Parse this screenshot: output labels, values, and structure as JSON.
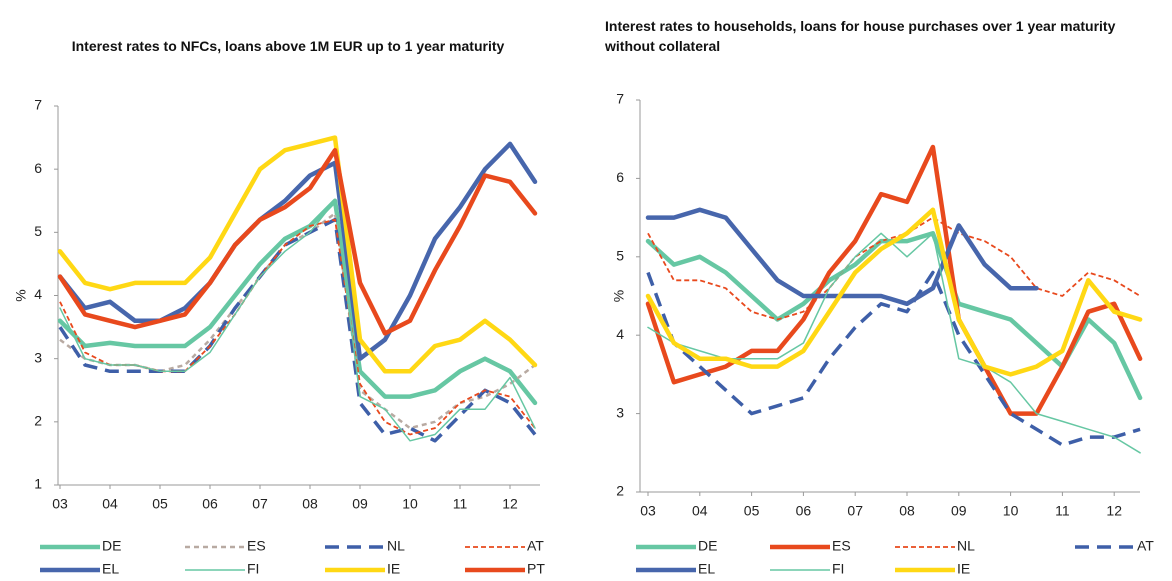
{
  "chart_data": [
    {
      "type": "line",
      "title": "Interest rates to NFCs, loans  above 1M EUR up to 1 year maturity",
      "y_label": "%",
      "categories": [
        "03",
        null,
        "04",
        null,
        "05",
        null,
        "06",
        null,
        "07",
        null,
        "08",
        null,
        "09",
        null,
        "10",
        null,
        "11",
        null,
        "12",
        null
      ],
      "ylim": [
        1,
        7
      ],
      "yticks": [
        1,
        2,
        3,
        4,
        5,
        6,
        7
      ],
      "series": [
        {
          "name": "DE",
          "color": "#66c7a3",
          "style": "thick",
          "values": [
            3.6,
            3.2,
            3.25,
            3.2,
            3.2,
            3.2,
            3.5,
            4.0,
            4.5,
            4.9,
            5.1,
            5.5,
            2.8,
            2.4,
            2.4,
            2.5,
            2.8,
            3.0,
            2.8,
            2.3
          ]
        },
        {
          "name": "ES",
          "color": "#b8aaa2",
          "style": "dashed",
          "values": [
            3.3,
            3.0,
            2.9,
            2.9,
            2.8,
            2.9,
            3.3,
            3.8,
            4.3,
            4.8,
            5.0,
            5.3,
            2.5,
            2.2,
            1.9,
            2.0,
            2.3,
            2.4,
            2.6,
            2.9
          ]
        },
        {
          "name": "NL",
          "color": "#3e5fa8",
          "style": "long-dashed",
          "values": [
            3.5,
            2.9,
            2.8,
            2.8,
            2.8,
            2.8,
            3.2,
            3.8,
            4.3,
            4.8,
            5.0,
            5.2,
            2.3,
            1.8,
            1.9,
            1.7,
            2.1,
            2.5,
            2.3,
            1.8
          ]
        },
        {
          "name": "AT",
          "color": "#e8491d",
          "style": "thin-dashed",
          "values": [
            3.9,
            3.1,
            2.9,
            2.9,
            2.8,
            2.8,
            3.2,
            3.7,
            4.3,
            4.8,
            5.1,
            5.2,
            2.6,
            2.0,
            1.8,
            1.9,
            2.3,
            2.5,
            2.4,
            1.9
          ]
        },
        {
          "name": "EL",
          "color": "#4766ac",
          "style": "thick",
          "values": [
            4.3,
            3.8,
            3.9,
            3.6,
            3.6,
            3.8,
            4.2,
            4.8,
            5.2,
            5.5,
            5.9,
            6.1,
            3.0,
            3.3,
            4.0,
            4.9,
            5.4,
            6.0,
            6.4,
            5.8
          ]
        },
        {
          "name": "FI",
          "color": "#66c7a3",
          "style": "thin",
          "values": [
            3.8,
            3.0,
            2.9,
            2.9,
            2.8,
            2.8,
            3.1,
            3.7,
            4.3,
            4.7,
            5.0,
            5.5,
            2.4,
            2.2,
            1.7,
            1.8,
            2.2,
            2.2,
            2.7,
            1.9
          ]
        },
        {
          "name": "IE",
          "color": "#ffd814",
          "style": "thick",
          "values": [
            4.7,
            4.2,
            4.1,
            4.2,
            4.2,
            4.2,
            4.6,
            5.3,
            6.0,
            6.3,
            6.4,
            6.5,
            3.3,
            2.8,
            2.8,
            3.2,
            3.3,
            3.6,
            3.3,
            2.9
          ]
        },
        {
          "name": "PT",
          "color": "#e8491d",
          "style": "thick",
          "values": [
            4.3,
            3.7,
            3.6,
            3.5,
            3.6,
            3.7,
            4.2,
            4.8,
            5.2,
            5.4,
            5.7,
            6.3,
            4.2,
            3.4,
            3.6,
            4.4,
            5.1,
            5.9,
            5.8,
            5.3
          ]
        }
      ]
    },
    {
      "type": "line",
      "title": "Interest rates to households, loans for house purchases over 1 year maturity without collateral",
      "y_label": "%",
      "categories": [
        "03",
        null,
        "04",
        null,
        "05",
        null,
        "06",
        null,
        "07",
        null,
        "08",
        null,
        "09",
        null,
        "10",
        null,
        "11",
        null,
        "12",
        null
      ],
      "ylim": [
        2,
        7
      ],
      "yticks": [
        2,
        3,
        4,
        5,
        6,
        7
      ],
      "series": [
        {
          "name": "DE",
          "color": "#66c7a3",
          "style": "thick",
          "values": [
            5.2,
            4.9,
            5.0,
            4.8,
            4.5,
            4.2,
            4.4,
            4.7,
            4.9,
            5.2,
            5.2,
            5.3,
            4.4,
            4.3,
            4.2,
            3.9,
            3.6,
            4.2,
            3.9,
            3.2
          ]
        },
        {
          "name": "ES",
          "color": "#e8491d",
          "style": "thick",
          "values": [
            4.4,
            3.4,
            3.5,
            3.6,
            3.8,
            3.8,
            4.2,
            4.8,
            5.2,
            5.8,
            5.7,
            6.4,
            4.2,
            3.6,
            3.0,
            3.0,
            3.6,
            4.3,
            4.4,
            3.7
          ]
        },
        {
          "name": "NL",
          "color": "#e8491d",
          "style": "thin-dashed",
          "values": [
            5.3,
            4.7,
            4.7,
            4.6,
            4.3,
            4.2,
            4.3,
            4.6,
            5.0,
            5.2,
            5.3,
            5.5,
            5.3,
            5.2,
            5.0,
            4.6,
            4.5,
            4.8,
            4.7,
            4.5
          ]
        },
        {
          "name": "AT",
          "color": "#3e5fa8",
          "style": "long-dashed",
          "values": [
            4.8,
            3.9,
            3.6,
            3.3,
            3.0,
            3.1,
            3.2,
            3.7,
            4.1,
            4.4,
            4.3,
            4.8,
            4.0,
            3.5,
            3.0,
            2.8,
            2.6,
            2.7,
            2.7,
            2.8
          ]
        },
        {
          "name": "EL",
          "color": "#4766ac",
          "style": "thick",
          "values": [
            5.5,
            5.5,
            5.6,
            5.5,
            5.1,
            4.7,
            4.5,
            4.5,
            4.5,
            4.5,
            4.4,
            4.6,
            5.4,
            4.9,
            4.6,
            4.6,
            null,
            null,
            null,
            null
          ]
        },
        {
          "name": "FI",
          "color": "#66c7a3",
          "style": "thin",
          "values": [
            4.1,
            3.9,
            3.8,
            3.7,
            3.7,
            3.7,
            3.9,
            4.6,
            5.0,
            5.3,
            5.0,
            5.3,
            3.7,
            3.6,
            3.4,
            3.0,
            2.9,
            2.8,
            2.7,
            2.5
          ]
        },
        {
          "name": "IE",
          "color": "#ffd814",
          "style": "thick",
          "values": [
            4.5,
            3.9,
            3.7,
            3.7,
            3.6,
            3.6,
            3.8,
            4.3,
            4.8,
            5.1,
            5.3,
            5.6,
            4.2,
            3.6,
            3.5,
            3.6,
            3.8,
            4.7,
            4.3,
            4.2
          ]
        }
      ]
    }
  ]
}
